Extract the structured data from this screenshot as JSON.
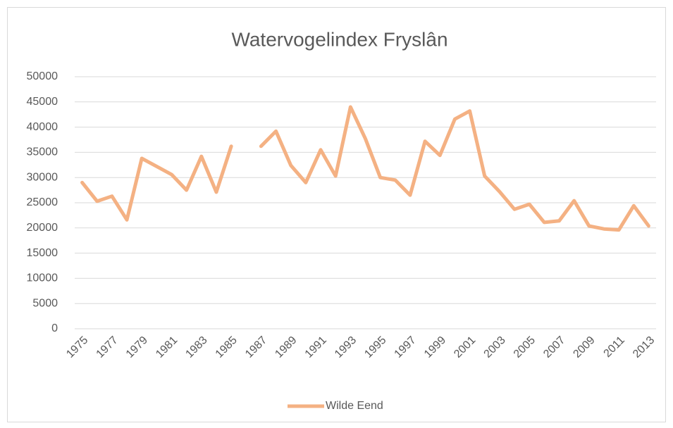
{
  "chart_data": {
    "type": "line",
    "title": "Watervogelindex Fryslân",
    "categories": [
      "1975",
      null,
      "1977",
      null,
      "1979",
      null,
      "1981",
      null,
      "1983",
      null,
      "1985",
      null,
      "1987",
      null,
      "1989",
      null,
      "1991",
      null,
      "1993",
      null,
      "1995",
      null,
      "1997",
      null,
      "1999",
      null,
      "2001",
      null,
      "2003",
      null,
      "2005",
      null,
      "2007",
      null,
      "2009",
      null,
      "2011",
      null,
      "2013"
    ],
    "series": [
      {
        "name": "Wilde Eend",
        "color": "#f4b183",
        "values": [
          29000,
          25300,
          26300,
          21600,
          33800,
          32200,
          30600,
          27500,
          34200,
          27100,
          36200,
          null,
          36200,
          39200,
          32400,
          29000,
          35500,
          30300,
          44000,
          37700,
          30000,
          29500,
          26500,
          37200,
          34400,
          41600,
          43200,
          30300,
          27200,
          23700,
          24700,
          21100,
          21400,
          25400,
          20400,
          19800,
          19600,
          24400,
          20400
        ]
      }
    ],
    "ylim": [
      0,
      50000
    ],
    "yticks": [
      0,
      5000,
      10000,
      15000,
      20000,
      25000,
      30000,
      35000,
      40000,
      45000,
      50000
    ],
    "grid": true,
    "legend": "bottom"
  }
}
